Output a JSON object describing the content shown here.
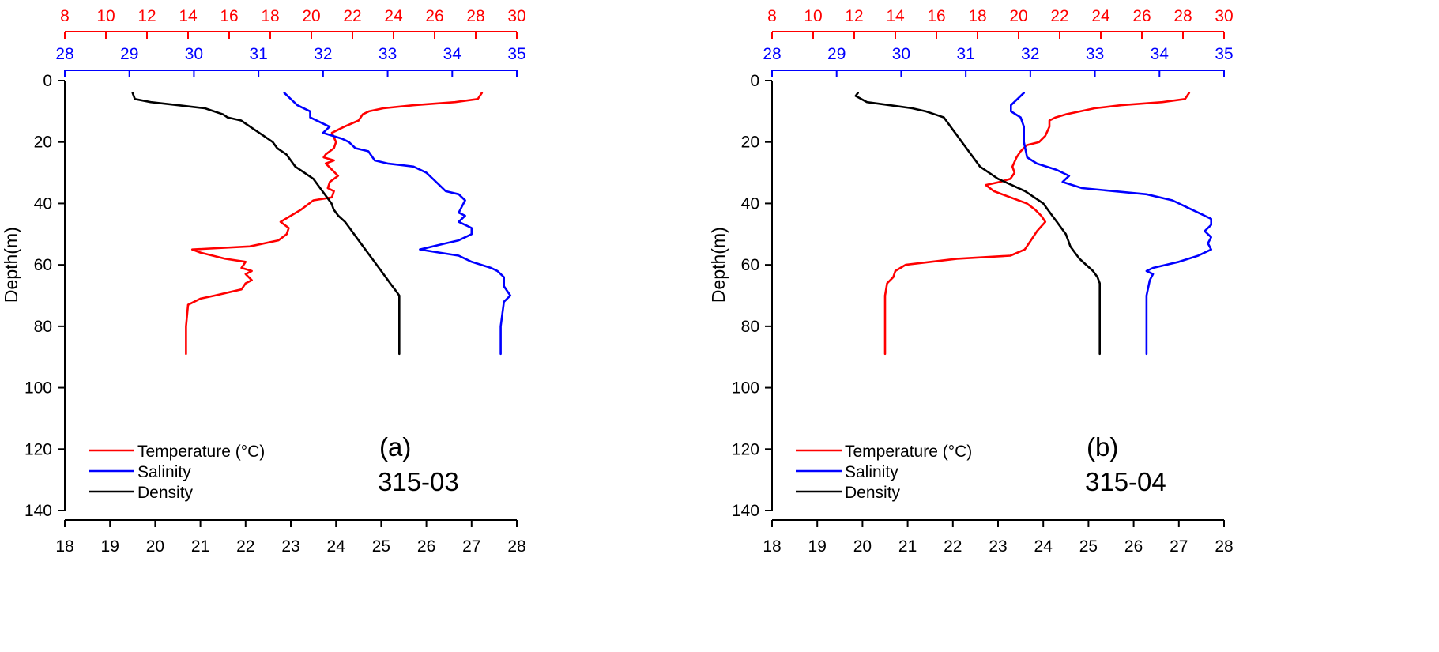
{
  "colors": {
    "temperature": "#ff0000",
    "salinity": "#0000ff",
    "density": "#000000",
    "axis": "#000000"
  },
  "chart_data": [
    {
      "type": "line",
      "panel_label": "(a)",
      "station": "315-03",
      "ylabel": "Depth(m)",
      "ylim": [
        0,
        140
      ],
      "yticks": [
        0,
        20,
        40,
        60,
        80,
        100,
        120,
        140
      ],
      "y_inverted": true,
      "axes": {
        "density": {
          "position": "bottom",
          "range": [
            18,
            28
          ],
          "ticks": [
            18,
            19,
            20,
            21,
            22,
            23,
            24,
            25,
            26,
            27,
            28
          ]
        },
        "salinity": {
          "position": "top-inner",
          "range": [
            28,
            35
          ],
          "ticks": [
            28,
            29,
            30,
            31,
            32,
            33,
            34,
            35
          ]
        },
        "temperature": {
          "position": "top-outer",
          "range": [
            8,
            30
          ],
          "ticks": [
            8,
            10,
            12,
            14,
            16,
            18,
            20,
            22,
            24,
            26,
            28,
            30
          ]
        }
      },
      "legend": {
        "placement": "bottom-left"
      },
      "series": [
        {
          "name": "Temperature (°C)",
          "axis": "temperature",
          "points": [
            [
              28.3,
              4
            ],
            [
              28.1,
              6
            ],
            [
              27.0,
              7
            ],
            [
              25.0,
              8
            ],
            [
              23.5,
              9
            ],
            [
              22.8,
              10
            ],
            [
              22.5,
              11
            ],
            [
              22.3,
              13
            ],
            [
              21.6,
              15
            ],
            [
              21.0,
              17
            ],
            [
              21.2,
              20
            ],
            [
              21.1,
              22
            ],
            [
              20.7,
              24
            ],
            [
              20.6,
              25
            ],
            [
              21.1,
              26
            ],
            [
              20.7,
              27
            ],
            [
              21.0,
              29
            ],
            [
              21.3,
              31
            ],
            [
              20.9,
              33
            ],
            [
              20.8,
              35
            ],
            [
              21.1,
              36
            ],
            [
              21.0,
              38
            ],
            [
              20.1,
              39
            ],
            [
              19.5,
              42
            ],
            [
              19.0,
              44
            ],
            [
              18.5,
              46
            ],
            [
              18.9,
              48
            ],
            [
              18.8,
              50
            ],
            [
              18.4,
              52
            ],
            [
              17.0,
              54
            ],
            [
              14.2,
              55
            ],
            [
              14.6,
              56
            ],
            [
              15.8,
              58
            ],
            [
              16.8,
              59
            ],
            [
              16.6,
              61
            ],
            [
              17.1,
              62
            ],
            [
              16.8,
              63
            ],
            [
              17.1,
              65
            ],
            [
              16.8,
              66
            ],
            [
              16.6,
              68
            ],
            [
              15.3,
              70
            ],
            [
              14.6,
              71
            ],
            [
              14.0,
              73
            ],
            [
              13.9,
              80
            ],
            [
              13.9,
              89
            ]
          ]
        },
        {
          "name": "Salinity",
          "axis": "salinity",
          "points": [
            [
              31.4,
              4
            ],
            [
              31.5,
              6
            ],
            [
              31.6,
              8
            ],
            [
              31.8,
              10
            ],
            [
              31.8,
              12
            ],
            [
              32.0,
              14
            ],
            [
              32.1,
              15
            ],
            [
              32.0,
              17
            ],
            [
              32.3,
              19
            ],
            [
              32.4,
              20
            ],
            [
              32.5,
              22
            ],
            [
              32.7,
              23
            ],
            [
              32.8,
              26
            ],
            [
              33.0,
              27
            ],
            [
              33.4,
              28
            ],
            [
              33.6,
              30
            ],
            [
              33.7,
              32
            ],
            [
              33.8,
              34
            ],
            [
              33.9,
              36
            ],
            [
              34.1,
              37
            ],
            [
              34.2,
              39
            ],
            [
              34.15,
              41
            ],
            [
              34.1,
              43
            ],
            [
              34.2,
              44
            ],
            [
              34.1,
              46
            ],
            [
              34.3,
              48
            ],
            [
              34.3,
              50
            ],
            [
              34.1,
              52
            ],
            [
              33.9,
              53
            ],
            [
              33.5,
              55
            ],
            [
              33.8,
              56
            ],
            [
              34.1,
              57
            ],
            [
              34.3,
              59
            ],
            [
              34.6,
              61
            ],
            [
              34.7,
              62
            ],
            [
              34.8,
              64
            ],
            [
              34.8,
              67
            ],
            [
              34.9,
              70
            ],
            [
              34.8,
              72
            ],
            [
              34.75,
              80
            ],
            [
              34.75,
              89
            ]
          ]
        },
        {
          "name": "Density",
          "axis": "density",
          "points": [
            [
              19.5,
              4
            ],
            [
              19.55,
              6
            ],
            [
              19.9,
              7
            ],
            [
              20.5,
              8
            ],
            [
              21.1,
              9
            ],
            [
              21.3,
              10
            ],
            [
              21.5,
              11
            ],
            [
              21.6,
              12
            ],
            [
              21.9,
              13
            ],
            [
              22.1,
              15
            ],
            [
              22.3,
              17
            ],
            [
              22.5,
              19
            ],
            [
              22.6,
              20
            ],
            [
              22.7,
              22
            ],
            [
              22.9,
              24
            ],
            [
              23.0,
              26
            ],
            [
              23.1,
              28
            ],
            [
              23.3,
              30
            ],
            [
              23.5,
              32
            ],
            [
              23.6,
              34
            ],
            [
              23.7,
              36
            ],
            [
              23.8,
              38
            ],
            [
              23.9,
              40
            ],
            [
              23.95,
              42
            ],
            [
              24.05,
              44
            ],
            [
              24.2,
              46
            ],
            [
              24.3,
              48
            ],
            [
              24.4,
              50
            ],
            [
              24.5,
              52
            ],
            [
              24.6,
              54
            ],
            [
              24.7,
              56
            ],
            [
              24.8,
              58
            ],
            [
              24.9,
              60
            ],
            [
              25.0,
              62
            ],
            [
              25.1,
              64
            ],
            [
              25.2,
              66
            ],
            [
              25.3,
              68
            ],
            [
              25.4,
              70
            ],
            [
              25.4,
              72
            ],
            [
              25.4,
              80
            ],
            [
              25.4,
              89
            ]
          ]
        }
      ]
    },
    {
      "type": "line",
      "panel_label": "(b)",
      "station": "315-04",
      "ylabel": "Depth(m)",
      "ylim": [
        0,
        140
      ],
      "yticks": [
        0,
        20,
        40,
        60,
        80,
        100,
        120,
        140
      ],
      "y_inverted": true,
      "axes": {
        "density": {
          "position": "bottom",
          "range": [
            18,
            28
          ],
          "ticks": [
            18,
            19,
            20,
            21,
            22,
            23,
            24,
            25,
            26,
            27,
            28
          ]
        },
        "salinity": {
          "position": "top-inner",
          "range": [
            28,
            35
          ],
          "ticks": [
            28,
            29,
            30,
            31,
            32,
            33,
            34,
            35
          ]
        },
        "temperature": {
          "position": "top-outer",
          "range": [
            8,
            30
          ],
          "ticks": [
            8,
            10,
            12,
            14,
            16,
            18,
            20,
            22,
            24,
            26,
            28,
            30
          ]
        }
      },
      "legend": {
        "placement": "bottom-left"
      },
      "series": [
        {
          "name": "Temperature (°C)",
          "axis": "temperature",
          "points": [
            [
              28.3,
              4
            ],
            [
              28.1,
              6
            ],
            [
              27.0,
              7
            ],
            [
              25.0,
              8
            ],
            [
              23.7,
              9
            ],
            [
              23.0,
              10
            ],
            [
              22.3,
              11
            ],
            [
              21.8,
              12
            ],
            [
              21.5,
              13
            ],
            [
              21.5,
              15
            ],
            [
              21.3,
              18
            ],
            [
              21.0,
              20
            ],
            [
              20.4,
              21
            ],
            [
              20.1,
              23
            ],
            [
              19.9,
              25
            ],
            [
              19.7,
              28
            ],
            [
              19.8,
              30
            ],
            [
              19.6,
              32
            ],
            [
              19.1,
              33
            ],
            [
              18.4,
              34
            ],
            [
              18.8,
              36
            ],
            [
              19.6,
              38
            ],
            [
              20.4,
              40
            ],
            [
              20.8,
              42
            ],
            [
              21.1,
              44
            ],
            [
              21.3,
              46
            ],
            [
              20.9,
              49
            ],
            [
              20.6,
              52
            ],
            [
              20.3,
              55
            ],
            [
              19.6,
              57
            ],
            [
              17.0,
              58
            ],
            [
              14.5,
              60
            ],
            [
              14.0,
              62
            ],
            [
              13.9,
              64
            ],
            [
              13.6,
              66
            ],
            [
              13.5,
              70
            ],
            [
              13.5,
              80
            ],
            [
              13.5,
              89
            ]
          ]
        },
        {
          "name": "Salinity",
          "axis": "salinity",
          "points": [
            [
              31.9,
              4
            ],
            [
              31.8,
              6
            ],
            [
              31.7,
              8
            ],
            [
              31.7,
              10
            ],
            [
              31.85,
              12
            ],
            [
              31.9,
              15
            ],
            [
              31.9,
              20
            ],
            [
              31.95,
              25
            ],
            [
              32.1,
              27
            ],
            [
              32.4,
              29
            ],
            [
              32.6,
              31
            ],
            [
              32.5,
              33
            ],
            [
              32.8,
              35
            ],
            [
              33.3,
              36
            ],
            [
              33.8,
              37
            ],
            [
              34.2,
              39
            ],
            [
              34.4,
              41
            ],
            [
              34.6,
              43
            ],
            [
              34.8,
              45
            ],
            [
              34.8,
              47
            ],
            [
              34.7,
              49
            ],
            [
              34.8,
              51
            ],
            [
              34.75,
              53
            ],
            [
              34.8,
              55
            ],
            [
              34.6,
              57
            ],
            [
              34.3,
              59
            ],
            [
              33.9,
              61
            ],
            [
              33.8,
              62
            ],
            [
              33.9,
              63
            ],
            [
              33.85,
              65
            ],
            [
              33.8,
              70
            ],
            [
              33.8,
              80
            ],
            [
              33.8,
              89
            ]
          ]
        },
        {
          "name": "Density",
          "axis": "density",
          "points": [
            [
              19.9,
              4
            ],
            [
              19.85,
              5
            ],
            [
              20.1,
              7
            ],
            [
              20.6,
              8
            ],
            [
              21.1,
              9
            ],
            [
              21.4,
              10
            ],
            [
              21.6,
              11
            ],
            [
              21.8,
              12
            ],
            [
              21.9,
              14
            ],
            [
              22.0,
              16
            ],
            [
              22.1,
              18
            ],
            [
              22.2,
              20
            ],
            [
              22.3,
              22
            ],
            [
              22.4,
              24
            ],
            [
              22.5,
              26
            ],
            [
              22.6,
              28
            ],
            [
              22.8,
              30
            ],
            [
              23.0,
              32
            ],
            [
              23.3,
              34
            ],
            [
              23.6,
              36
            ],
            [
              23.8,
              38
            ],
            [
              24.0,
              40
            ],
            [
              24.1,
              42
            ],
            [
              24.2,
              44
            ],
            [
              24.3,
              46
            ],
            [
              24.4,
              48
            ],
            [
              24.5,
              50
            ],
            [
              24.55,
              52
            ],
            [
              24.6,
              54
            ],
            [
              24.7,
              56
            ],
            [
              24.8,
              58
            ],
            [
              24.95,
              60
            ],
            [
              25.1,
              62
            ],
            [
              25.2,
              64
            ],
            [
              25.25,
              66
            ],
            [
              25.25,
              80
            ],
            [
              25.25,
              89
            ]
          ]
        }
      ]
    }
  ]
}
